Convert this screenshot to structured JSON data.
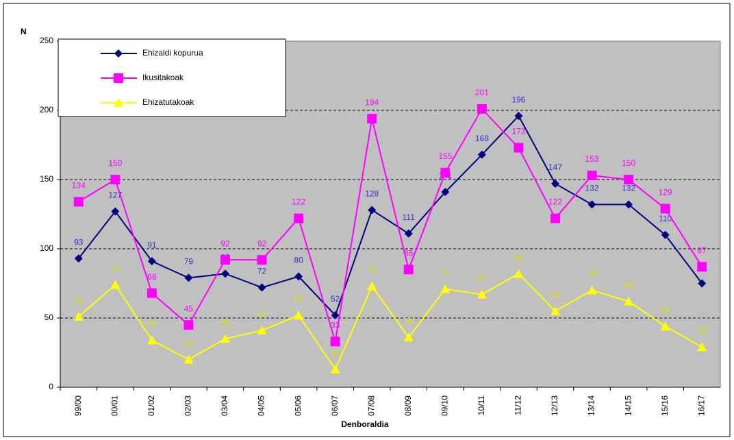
{
  "chart_data": {
    "type": "line",
    "y_label": "N",
    "x_label": "Denboraldia",
    "categories": [
      "99/00",
      "00/01",
      "01/02",
      "02/03",
      "03/04",
      "04/05",
      "05/06",
      "06/07",
      "07/08",
      "08/09",
      "09/10",
      "10/11",
      "11/12",
      "12/13",
      "13/14",
      "14/15",
      "15/16",
      "16/17"
    ],
    "series": [
      {
        "name": "Ehizaldi kopurua",
        "color": "#000080",
        "label_color": "#3333cc",
        "marker": "diamond",
        "values": [
          93,
          127,
          91,
          79,
          82,
          72,
          80,
          52,
          128,
          111,
          141,
          168,
          196,
          147,
          132,
          132,
          110,
          75
        ]
      },
      {
        "name": "Ikusitakoak",
        "color": "#ff00ff",
        "label_color": "#ff00ff",
        "marker": "square",
        "values": [
          134,
          150,
          68,
          45,
          92,
          92,
          122,
          33,
          194,
          85,
          155,
          201,
          173,
          122,
          153,
          150,
          129,
          87
        ]
      },
      {
        "name": "Ehizatutakoak",
        "color": "#ffff00",
        "label_color": "#e0e000",
        "marker": "triangle",
        "values": [
          51,
          74,
          34,
          20,
          35,
          41,
          52,
          13,
          73,
          36,
          71,
          67,
          82,
          55,
          70,
          62,
          44,
          29
        ]
      }
    ],
    "ylim": [
      0,
      250
    ],
    "yticks": [
      0,
      50,
      100,
      150,
      200,
      250
    ],
    "grid": true,
    "legend": "upper left"
  }
}
